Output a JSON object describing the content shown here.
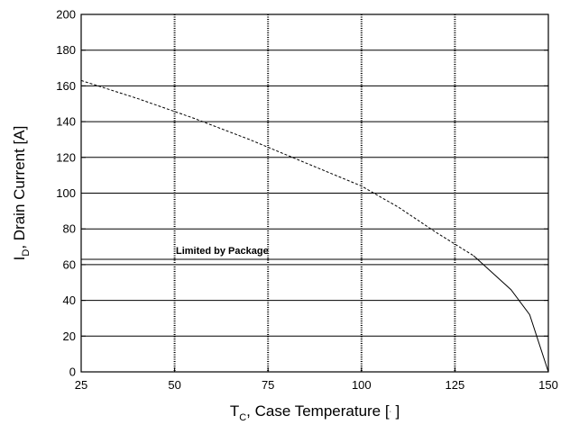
{
  "chart_data": {
    "type": "line",
    "xlim": [
      25,
      150
    ],
    "ylim": [
      0,
      200
    ],
    "x_ticks": [
      25,
      50,
      75,
      100,
      125,
      150
    ],
    "y_ticks": [
      0,
      20,
      40,
      60,
      80,
      100,
      120,
      140,
      160,
      180,
      200
    ],
    "xlabel_main": "T",
    "xlabel_sub": "C",
    "xlabel_rest": ", Case Temperature [",
    "xlabel_unit_glyph": "◦",
    "xlabel_close": "  ]",
    "ylabel_main": "I",
    "ylabel_sub": "D",
    "ylabel_rest": ", Drain Current [A]",
    "grid": {
      "horizontal_at": [
        20,
        40,
        60,
        80,
        100,
        120,
        140,
        160,
        180
      ],
      "vertical_dotted_at": [
        50,
        75,
        100,
        125
      ]
    },
    "package_limit": {
      "label": "Limited by Package",
      "y": 63
    },
    "series": [
      {
        "style": "dashed",
        "x": [
          25,
          40,
          55,
          70,
          85,
          100,
          110,
          120,
          130
        ],
        "y": [
          163,
          153,
          142,
          130,
          117,
          104,
          92,
          78,
          65
        ]
      },
      {
        "style": "solid",
        "x": [
          130,
          140,
          145,
          150
        ],
        "y": [
          65,
          46,
          32,
          0
        ]
      }
    ]
  }
}
